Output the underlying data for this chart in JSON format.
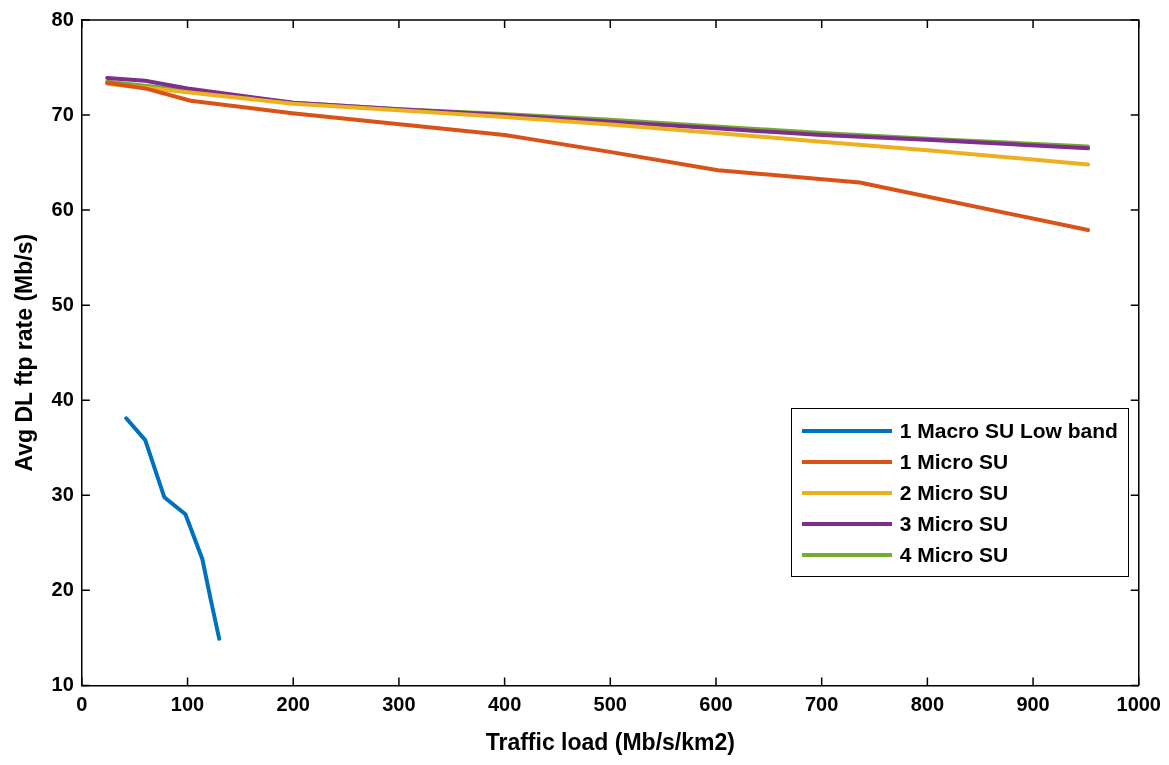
{
  "chart_data": {
    "type": "line",
    "xlabel": "Traffic load (Mb/s/km2)",
    "ylabel": "Avg DL ftp rate (Mb/s)",
    "xlim": [
      0,
      1000
    ],
    "xticks": [
      0,
      100,
      200,
      300,
      400,
      500,
      600,
      700,
      800,
      900,
      1000
    ],
    "ylim": [
      10,
      80
    ],
    "yticks": [
      10,
      20,
      30,
      40,
      50,
      60,
      70,
      80
    ],
    "grid": false,
    "legend": "right",
    "marker": "none",
    "line_style": "solid",
    "series": [
      {
        "name": "1 Macro SU Low band",
        "color": "#0072bd",
        "x": [
          42,
          60,
          78,
          98,
          114,
          122,
          130
        ],
        "values": [
          38.1,
          35.8,
          29.8,
          28.0,
          23.3,
          19.0,
          14.9
        ]
      },
      {
        "name": "1 Micro SU",
        "color": "#d95319",
        "x": [
          24,
          60,
          103,
          199,
          400,
          501,
          602,
          736,
          952
        ],
        "values": [
          73.4,
          72.8,
          71.5,
          70.2,
          67.9,
          66.1,
          64.2,
          62.9,
          57.9
        ]
      },
      {
        "name": "2 Micro SU",
        "color": "#edb120",
        "x": [
          24,
          100,
          200,
          300,
          400,
          500,
          600,
          700,
          800,
          952
        ],
        "values": [
          73.3,
          72.4,
          71.2,
          70.5,
          69.8,
          69.0,
          68.1,
          67.2,
          66.3,
          64.8
        ]
      },
      {
        "name": "3 Micro SU",
        "color": "#7e2f8e",
        "x": [
          24,
          60,
          100,
          200,
          300,
          400,
          500,
          600,
          700,
          800,
          952
        ],
        "values": [
          73.9,
          73.6,
          72.8,
          71.3,
          70.6,
          70.0,
          69.3,
          68.6,
          67.9,
          67.4,
          66.5
        ]
      },
      {
        "name": "4 Micro SU",
        "color": "#77ac30",
        "x": [
          24,
          100,
          200,
          300,
          400,
          500,
          600,
          700,
          800,
          952
        ],
        "values": [
          73.5,
          72.6,
          71.3,
          70.6,
          70.1,
          69.5,
          68.8,
          68.1,
          67.5,
          66.7
        ]
      }
    ]
  }
}
